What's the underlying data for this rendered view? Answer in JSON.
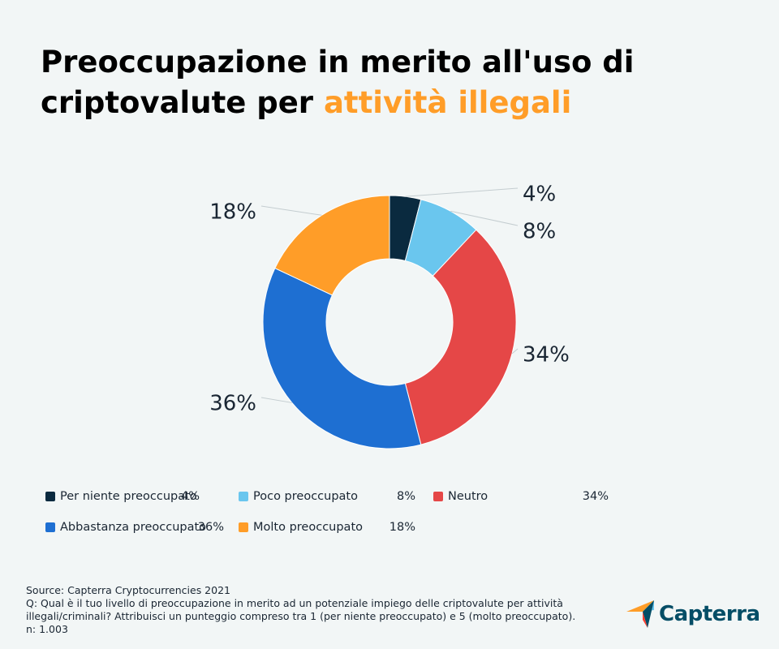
{
  "title": {
    "line1": "Preoccupazione in merito all'uso di",
    "line2_prefix": "criptovalute per",
    "line2_highlight": "attività illegali"
  },
  "colors": {
    "highlight": "#ff9d28",
    "background": "#f2f6f6"
  },
  "chart_data": {
    "type": "pie",
    "donut": true,
    "categories": [
      "Per niente preoccupato",
      "Poco preoccupato",
      "Neutro",
      "Abbastanza preoccupato",
      "Molto preoccupato"
    ],
    "values": [
      4,
      8,
      34,
      36,
      18
    ],
    "labels": [
      "4%",
      "8%",
      "34%",
      "36%",
      "18%"
    ],
    "colors": [
      "#0a2a3f",
      "#6ac6ee",
      "#e54747",
      "#1e6fd2",
      "#ff9d28"
    ],
    "legend_position": "bottom"
  },
  "legend": [
    {
      "label": "Per niente preoccupato",
      "value": "4%"
    },
    {
      "label": "Poco preoccupato",
      "value": "8%"
    },
    {
      "label": "Neutro",
      "value": "34%"
    },
    {
      "label": "Abbastanza preoccupato",
      "value": "36%"
    },
    {
      "label": "Molto preoccupato",
      "value": "18%"
    }
  ],
  "footer": {
    "source": "Source: Capterra Cryptocurrencies 2021",
    "question_line1": "Q: Qual è il tuo livello di preoccupazione in merito ad un potenziale impiego delle criptovalute per attività",
    "question_line2": "illegali/criminali? Attribuisci un punteggio compreso tra 1 (per niente preoccupato) e 5 (molto preoccupato).",
    "n": "n: 1.003"
  },
  "logo": {
    "text": "Capterra",
    "icon": "capterra-arrow-icon"
  }
}
